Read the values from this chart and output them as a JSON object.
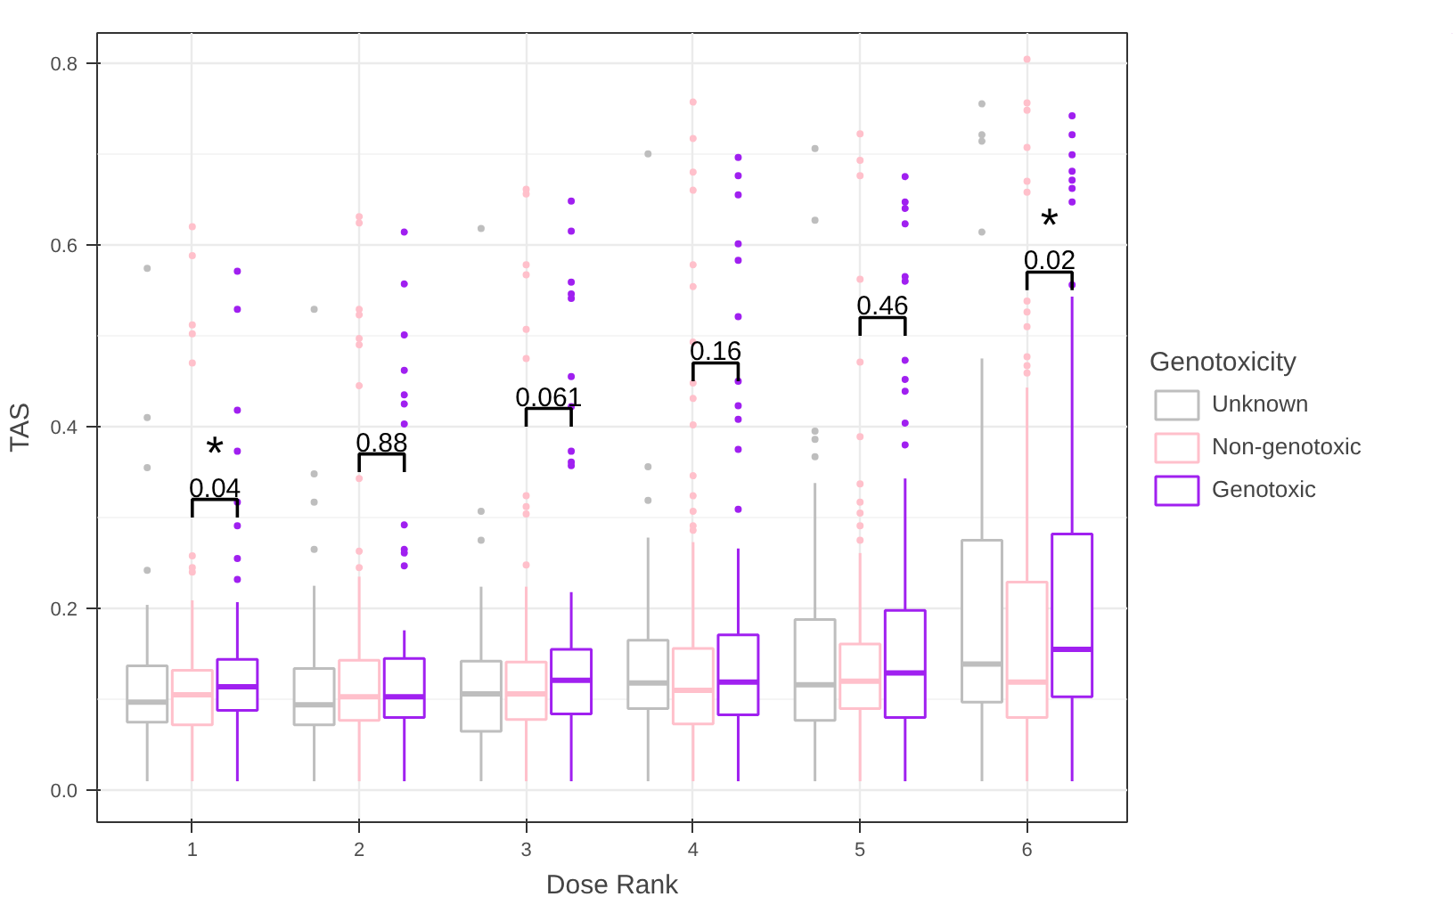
{
  "chart_data": {
    "type": "box",
    "xlabel": "Dose Rank",
    "ylabel": "TAS",
    "legend_title": "Genotoxicity",
    "legend": "right",
    "grid": true,
    "categories": [
      "1",
      "2",
      "3",
      "4",
      "5",
      "6"
    ],
    "ylim": [
      -0.035,
      0.833
    ],
    "yticks": [
      {
        "value": 0,
        "label": "0.0"
      },
      {
        "value": 0.2,
        "label": "0.2"
      },
      {
        "value": 0.4,
        "label": "0.4"
      },
      {
        "value": 0.6,
        "label": "0.6"
      },
      {
        "value": 0.8,
        "label": "0.8"
      }
    ],
    "series": [
      {
        "name": "Unknown",
        "color": "#bebebe",
        "boxes": [
          {
            "low": 0.01,
            "q1": 0.075,
            "median": 0.097,
            "q3": 0.137,
            "high": 0.204,
            "outliers": [
              0.574,
              0.41,
              0.355,
              0.242
            ]
          },
          {
            "low": 0.01,
            "q1": 0.072,
            "median": 0.094,
            "q3": 0.134,
            "high": 0.225,
            "outliers": [
              0.529,
              0.348,
              0.317,
              0.265
            ]
          },
          {
            "low": 0.01,
            "q1": 0.065,
            "median": 0.106,
            "q3": 0.142,
            "high": 0.224,
            "outliers": [
              0.618,
              0.307,
              0.275
            ]
          },
          {
            "low": 0.01,
            "q1": 0.09,
            "median": 0.118,
            "q3": 0.165,
            "high": 0.278,
            "outliers": [
              0.7,
              0.356,
              0.319
            ]
          },
          {
            "low": 0.01,
            "q1": 0.077,
            "median": 0.116,
            "q3": 0.188,
            "high": 0.338,
            "outliers": [
              0.706,
              0.627,
              0.395,
              0.386,
              0.367
            ]
          },
          {
            "low": 0.01,
            "q1": 0.097,
            "median": 0.139,
            "q3": 0.275,
            "high": 0.475,
            "outliers": [
              0.755,
              0.721,
              0.714,
              0.614
            ]
          }
        ]
      },
      {
        "name": "Non-genotoxic",
        "color": "#ffc0cb",
        "boxes": [
          {
            "low": 0.01,
            "q1": 0.072,
            "median": 0.105,
            "q3": 0.132,
            "high": 0.209,
            "outliers": [
              0.62,
              0.588,
              0.512,
              0.502,
              0.47,
              0.258,
              0.245,
              0.24
            ]
          },
          {
            "low": 0.01,
            "q1": 0.077,
            "median": 0.103,
            "q3": 0.143,
            "high": 0.235,
            "outliers": [
              0.631,
              0.624,
              0.529,
              0.523,
              0.497,
              0.49,
              0.445,
              0.343,
              0.263,
              0.245
            ]
          },
          {
            "low": 0.01,
            "q1": 0.078,
            "median": 0.106,
            "q3": 0.141,
            "high": 0.224,
            "outliers": [
              0.661,
              0.656,
              0.578,
              0.567,
              0.507,
              0.475,
              0.324,
              0.312,
              0.304,
              0.248
            ]
          },
          {
            "low": 0.01,
            "q1": 0.073,
            "median": 0.11,
            "q3": 0.156,
            "high": 0.273,
            "outliers": [
              0.757,
              0.717,
              0.68,
              0.66,
              0.578,
              0.554,
              0.493,
              0.448,
              0.431,
              0.402,
              0.346,
              0.324,
              0.307,
              0.291,
              0.286
            ]
          },
          {
            "low": 0.01,
            "q1": 0.09,
            "median": 0.12,
            "q3": 0.161,
            "high": 0.261,
            "outliers": [
              0.722,
              0.693,
              0.676,
              0.562,
              0.471,
              0.389,
              0.337,
              0.317,
              0.305,
              0.291,
              0.275
            ]
          },
          {
            "low": 0.01,
            "q1": 0.08,
            "median": 0.119,
            "q3": 0.229,
            "high": 0.443,
            "outliers": [
              0.804,
              0.756,
              0.748,
              0.707,
              0.67,
              0.658,
              0.538,
              0.526,
              0.51,
              0.477,
              0.467,
              0.459
            ]
          }
        ]
      },
      {
        "name": "Genotoxic",
        "color": "#a020f0",
        "boxes": [
          {
            "low": 0.01,
            "q1": 0.088,
            "median": 0.114,
            "q3": 0.144,
            "high": 0.207,
            "outliers": [
              0.571,
              0.529,
              0.418,
              0.373,
              0.317,
              0.291,
              0.255,
              0.232
            ]
          },
          {
            "low": 0.01,
            "q1": 0.08,
            "median": 0.103,
            "q3": 0.145,
            "high": 0.176,
            "outliers": [
              0.614,
              0.557,
              0.501,
              0.462,
              0.435,
              0.425,
              0.403,
              0.292,
              0.265,
              0.261,
              0.247
            ]
          },
          {
            "low": 0.01,
            "q1": 0.084,
            "median": 0.121,
            "q3": 0.155,
            "high": 0.218,
            "outliers": [
              0.648,
              0.615,
              0.559,
              0.546,
              0.541,
              0.455,
              0.422,
              0.373,
              0.361,
              0.357
            ]
          },
          {
            "low": 0.01,
            "q1": 0.083,
            "median": 0.119,
            "q3": 0.171,
            "high": 0.266,
            "outliers": [
              0.696,
              0.676,
              0.655,
              0.601,
              0.583,
              0.521,
              0.45,
              0.423,
              0.408,
              0.375,
              0.309
            ]
          },
          {
            "low": 0.01,
            "q1": 0.08,
            "median": 0.129,
            "q3": 0.198,
            "high": 0.343,
            "outliers": [
              0.675,
              0.647,
              0.64,
              0.623,
              0.565,
              0.56,
              0.473,
              0.452,
              0.439,
              0.404,
              0.38
            ]
          },
          {
            "low": 0.01,
            "q1": 0.103,
            "median": 0.155,
            "q3": 0.282,
            "high": 0.543,
            "outliers": [
              0.742,
              0.721,
              0.699,
              0.681,
              0.671,
              0.662,
              0.647,
              0.556
            ]
          }
        ]
      }
    ],
    "annotations": [
      "0.04",
      "*",
      "0.88",
      "0.061",
      "0.16",
      "0.46",
      "0.02",
      "*"
    ]
  }
}
